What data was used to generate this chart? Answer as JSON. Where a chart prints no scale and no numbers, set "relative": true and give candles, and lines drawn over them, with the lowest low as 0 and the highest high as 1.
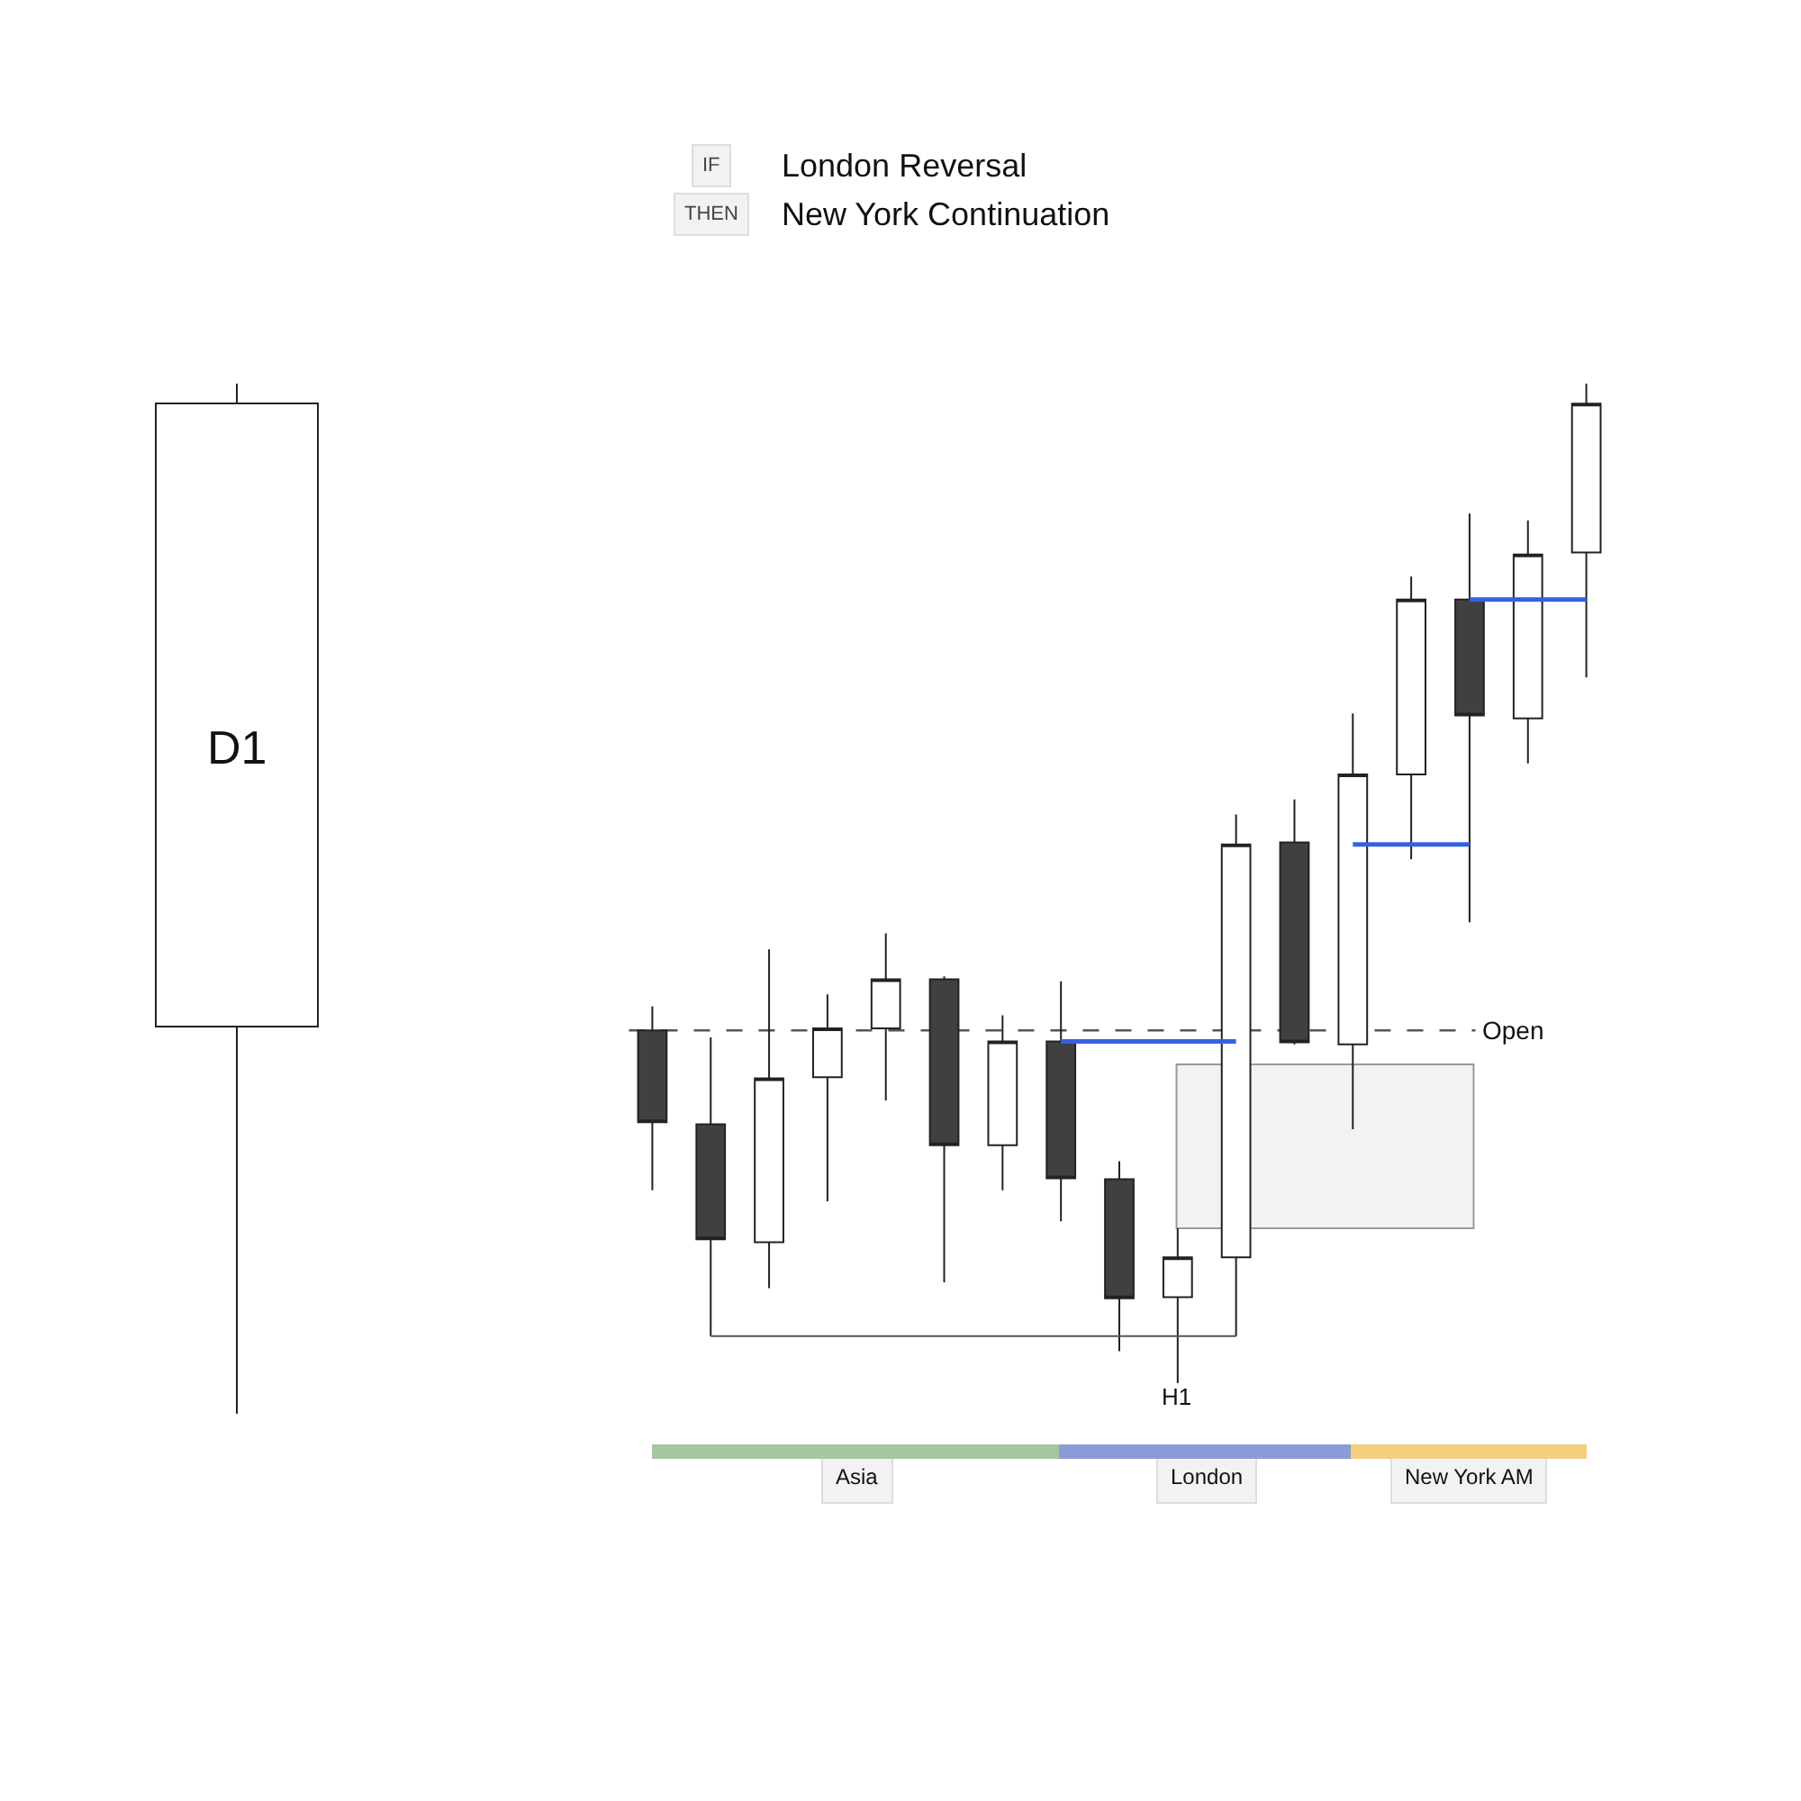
{
  "chart_data": {
    "type": "candlestick",
    "relative": true,
    "categories": [
      null,
      null,
      null,
      null,
      null,
      null,
      null,
      null,
      null,
      null,
      null,
      null,
      null,
      null,
      null,
      null,
      null
    ],
    "annotations": [
      "IF",
      "London Reversal",
      "THEN",
      "New York Continuation",
      "H1",
      "Asia",
      "London",
      "New York AM",
      "D1"
    ],
    "ohlc": [
      [
        0.353,
        0.377,
        0.193,
        0.261
      ],
      [
        0.259,
        0.346,
        0.047,
        0.144
      ],
      [
        0.141,
        0.434,
        0.095,
        0.305
      ],
      [
        0.306,
        0.389,
        0.182,
        0.355
      ],
      [
        0.355,
        0.45,
        0.283,
        0.404
      ],
      [
        0.404,
        0.407,
        0.101,
        0.238
      ],
      [
        0.238,
        0.368,
        0.193,
        0.342
      ],
      [
        0.342,
        0.402,
        0.162,
        0.205
      ],
      [
        0.204,
        0.222,
        0.032,
        0.085
      ],
      [
        0.086,
        0.155,
        0,
        0.126
      ],
      [
        0.126,
        0.569,
        0.047,
        0.539
      ],
      [
        0.541,
        0.584,
        0.339,
        0.341
      ],
      [
        0.339,
        0.67,
        0.254,
        0.609
      ],
      [
        0.609,
        0.807,
        0.524,
        0.784
      ],
      [
        0.784,
        0.87,
        0.461,
        0.668
      ],
      [
        0.665,
        0.863,
        0.62,
        0.829
      ],
      [
        0.831,
        1,
        0.706,
        0.98
      ]
    ],
    "colors": [
      "#404040",
      "#404040",
      "#ffffff",
      "#ffffff",
      "#ffffff",
      "#404040",
      "#ffffff",
      "#404040",
      "#404040",
      "#ffffff",
      "#ffffff",
      "#404040",
      "#ffffff",
      "#ffffff",
      "#404040",
      "#ffffff",
      "#ffffff"
    ],
    "series": [
      {
        "type": "line",
        "color": "#3461e0",
        "values": [
          null,
          null,
          null,
          null,
          null,
          null,
          null,
          0.342,
          0.342,
          0.342,
          0.342,
          null,
          null,
          null,
          null,
          null,
          null
        ]
      },
      {
        "type": "line",
        "color": "#3461e0",
        "values": [
          null,
          null,
          null,
          null,
          null,
          null,
          null,
          null,
          null,
          null,
          null,
          null,
          0.539,
          0.539,
          0.539,
          null,
          null
        ]
      },
      {
        "type": "line",
        "color": "#3461e0",
        "values": [
          null,
          null,
          null,
          null,
          null,
          null,
          null,
          null,
          null,
          null,
          null,
          null,
          null,
          null,
          0.784,
          0.784,
          0.784
        ]
      },
      {
        "type": "line",
        "color": "#555555",
        "values": [
          null,
          0.047,
          0.047,
          0.047,
          0.047,
          0.047,
          0.047,
          0.047,
          0.047,
          0.047,
          0.047,
          null,
          null,
          null,
          null,
          null,
          null
        ]
      }
    ],
    "ref_lines": [
      {
        "axis": "y",
        "value": 0.353,
        "label": "Open",
        "line_style": "dashed",
        "color": "#555555"
      }
    ],
    "bands": [
      {
        "axis": "y",
        "from": 0.155,
        "to": 0.319,
        "color": "#f2f2f2"
      }
    ]
  }
}
